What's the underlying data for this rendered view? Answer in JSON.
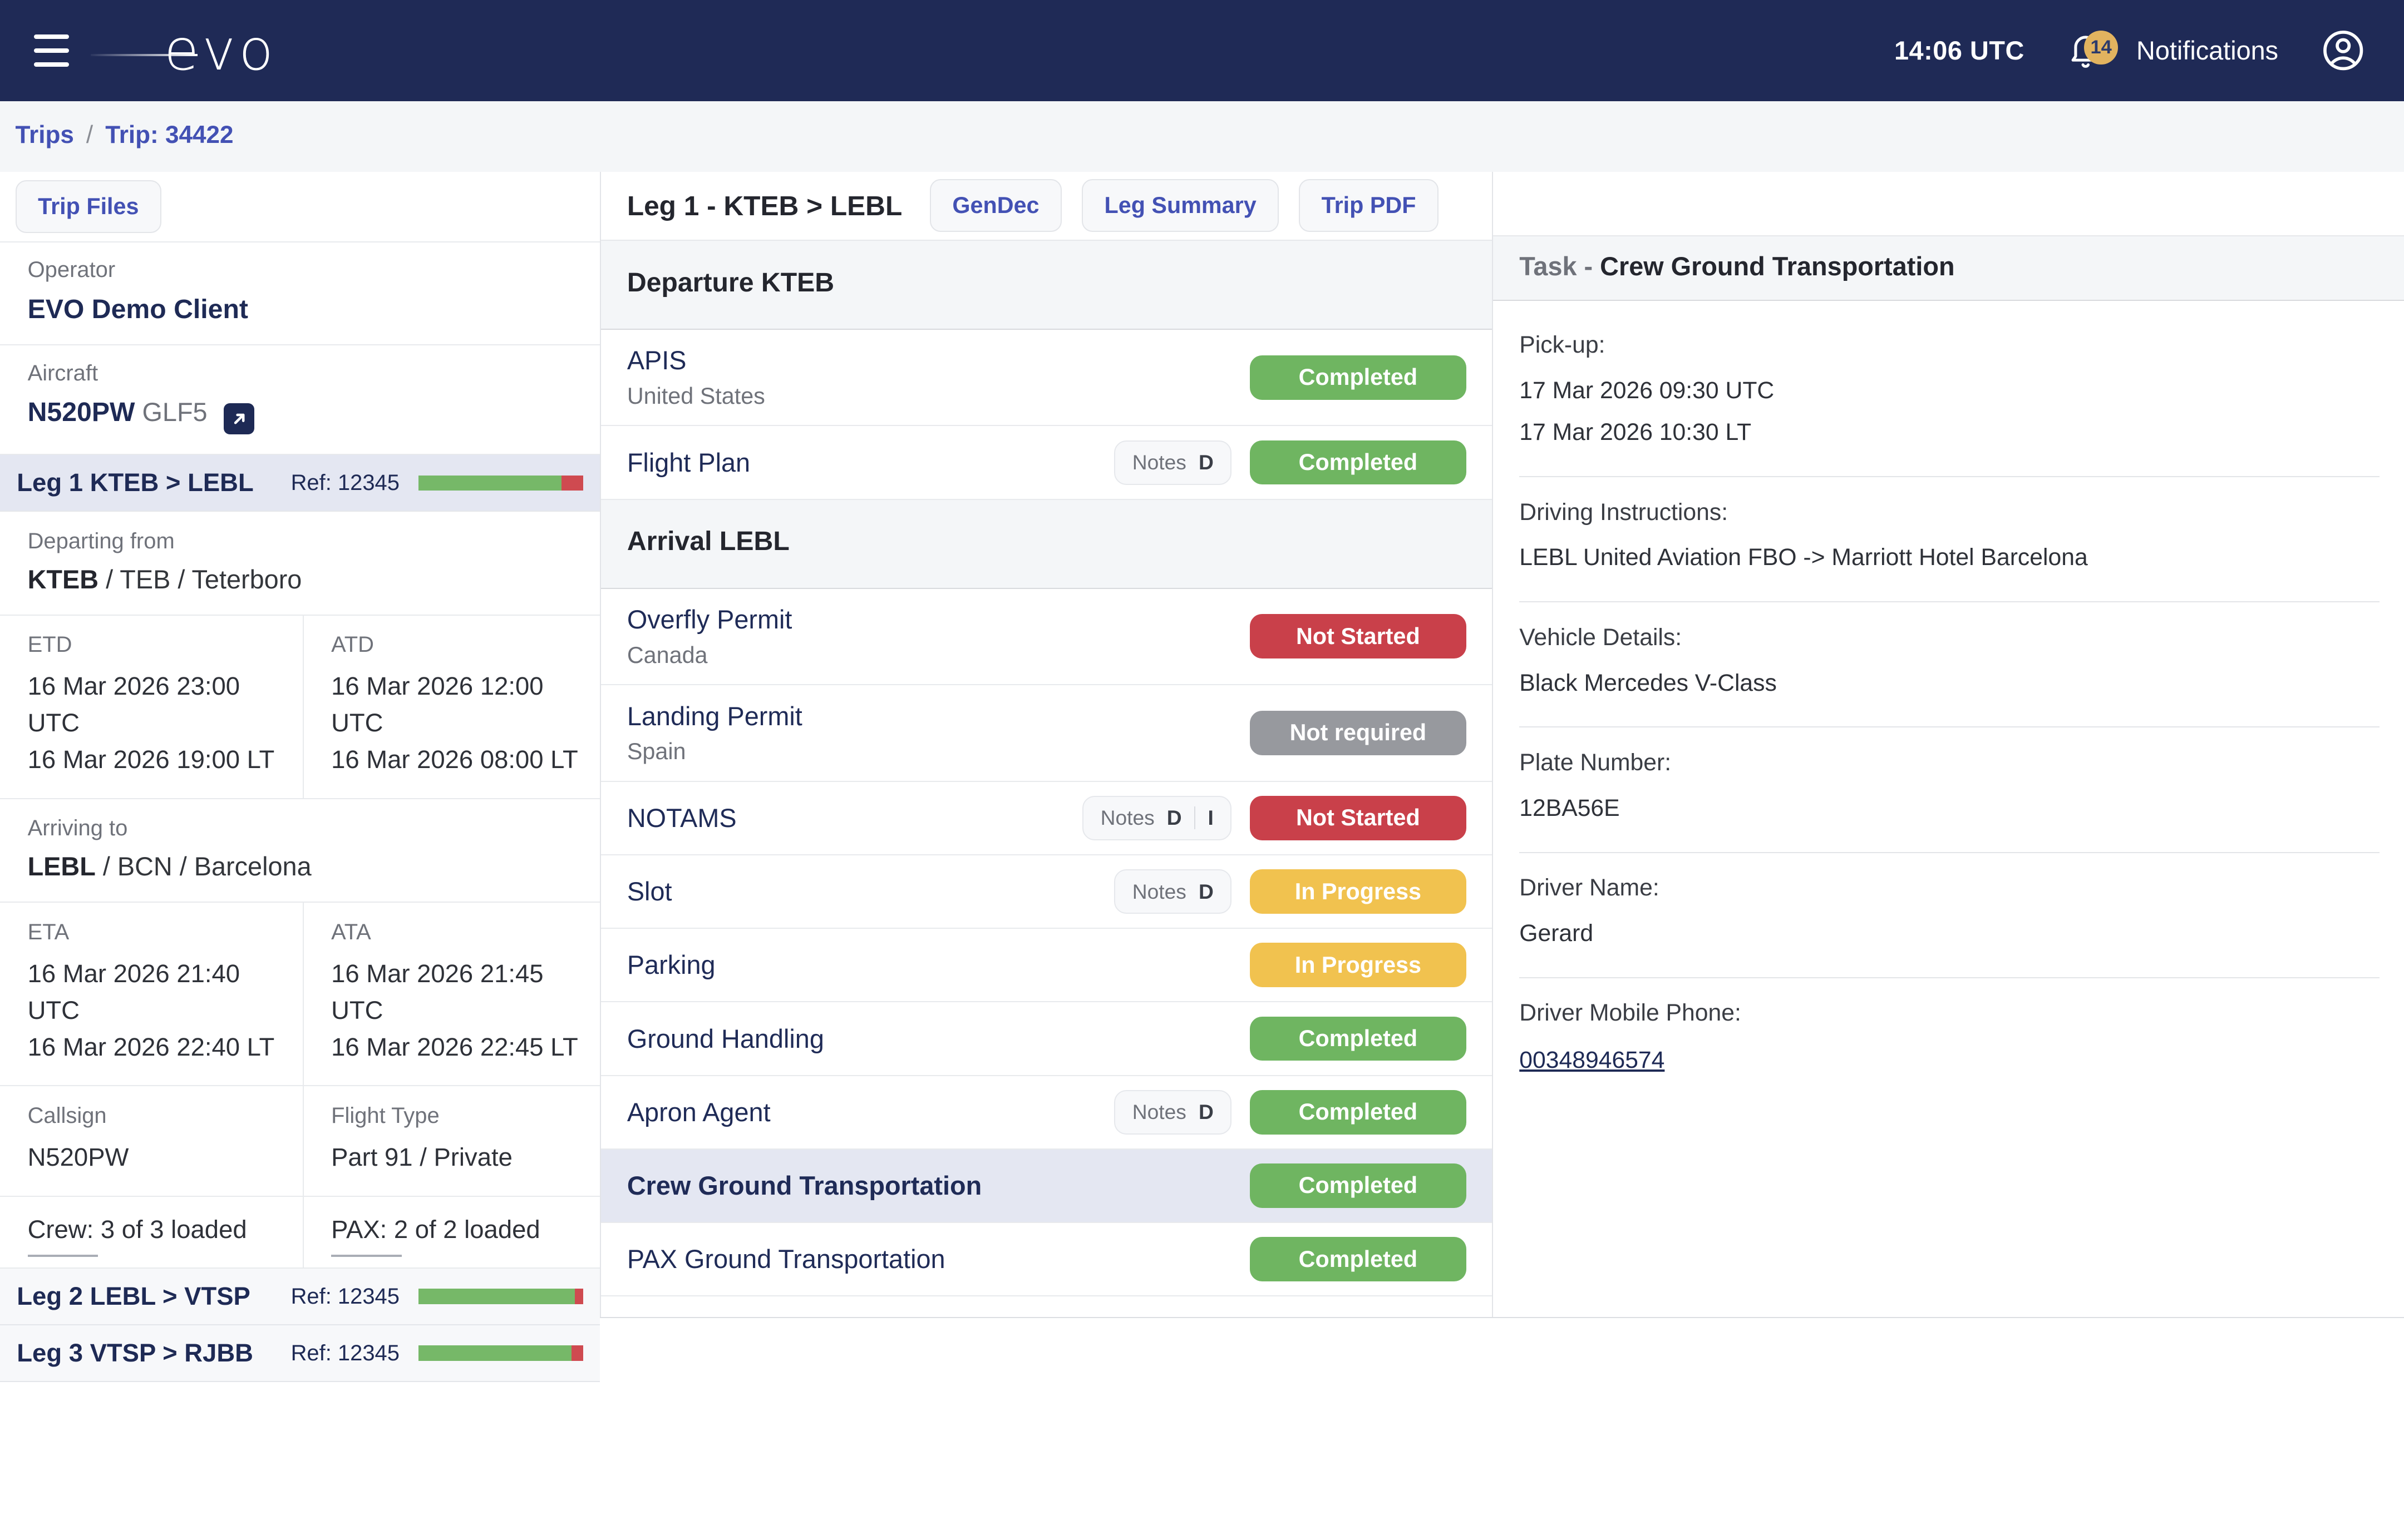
{
  "navbar": {
    "logo": "evo",
    "time": "14:06 UTC",
    "notifications_count": "14",
    "notifications_label": "Notifications"
  },
  "breadcrumb": {
    "trips": "Trips",
    "separator": "/",
    "current": "Trip: 34422"
  },
  "sidebar": {
    "trip_files_button": "Trip Files",
    "operator_label": "Operator",
    "operator_value": "EVO Demo Client",
    "aircraft_label": "Aircraft",
    "aircraft_reg": "N520PW",
    "aircraft_type": "GLF5",
    "legs": [
      {
        "label": "Leg 1 KTEB > LEBL",
        "ref": "Ref: 12345",
        "progress": [
          87,
          13
        ],
        "selected": true
      },
      {
        "label": "Leg 2 LEBL > VTSP",
        "ref": "Ref: 12345",
        "progress": [
          95,
          5
        ],
        "selected": false
      },
      {
        "label": "Leg 3 VTSP > RJBB",
        "ref": "Ref: 12345",
        "progress": [
          93,
          7
        ],
        "selected": false
      }
    ],
    "departing_label": "Departing from",
    "departing_bold": "KTEB",
    "departing_rest": " / TEB / Teterboro",
    "etd_label": "ETD",
    "etd_utc": "16 Mar 2026 23:00 UTC",
    "etd_lt": "16 Mar 2026 19:00 LT",
    "atd_label": "ATD",
    "atd_utc": "16 Mar 2026 12:00 UTC",
    "atd_lt": "16 Mar 2026 08:00 LT",
    "arriving_label": "Arriving to",
    "arriving_bold": "LEBL",
    "arriving_rest": " / BCN / Barcelona",
    "eta_label": "ETA",
    "eta_utc": "16 Mar 2026 21:40 UTC",
    "eta_lt": "16 Mar 2026 22:40 LT",
    "ata_label": "ATA",
    "ata_utc": "16 Mar 2026 21:45 UTC",
    "ata_lt": "16 Mar 2026 22:45 LT",
    "callsign_label": "Callsign",
    "callsign_value": "N520PW",
    "flight_type_label": "Flight Type",
    "flight_type_value": "Part 91 / Private",
    "crew_text": "Crew: 3 of 3 loaded",
    "pax_text": "PAX: 2 of 2 loaded"
  },
  "leg_panel": {
    "title": "Leg 1 - KTEB > LEBL",
    "buttons": [
      "GenDec",
      "Leg Summary",
      "Trip PDF"
    ],
    "sections": [
      {
        "header": "Departure KTEB",
        "tasks": [
          {
            "name": "APIS",
            "subtitle": "United States",
            "status": "Completed",
            "status_key": "completed"
          },
          {
            "name": "Flight Plan",
            "chip": {
              "label": "Notes",
              "flags": [
                "D"
              ]
            },
            "status": "Completed",
            "status_key": "completed"
          }
        ]
      },
      {
        "header": "Arrival LEBL",
        "tasks": [
          {
            "name": "Overfly Permit",
            "subtitle": "Canada",
            "status": "Not Started",
            "status_key": "not_started"
          },
          {
            "name": "Landing Permit",
            "subtitle": "Spain",
            "status": "Not required",
            "status_key": "not_required"
          },
          {
            "name": "NOTAMS",
            "chip": {
              "label": "Notes",
              "flags": [
                "D",
                "I"
              ]
            },
            "status": "Not Started",
            "status_key": "not_started"
          },
          {
            "name": "Slot",
            "chip": {
              "label": "Notes",
              "flags": [
                "D"
              ]
            },
            "status": "In Progress",
            "status_key": "in_progress"
          },
          {
            "name": "Parking",
            "status": "In Progress",
            "status_key": "in_progress"
          },
          {
            "name": "Ground Handling",
            "status": "Completed",
            "status_key": "completed"
          },
          {
            "name": "Apron Agent",
            "chip": {
              "label": "Notes",
              "flags": [
                "D"
              ]
            },
            "status": "Completed",
            "status_key": "completed"
          },
          {
            "name": "Crew Ground Transportation",
            "selected": true,
            "status": "Completed",
            "status_key": "completed"
          },
          {
            "name": "PAX Ground Transportation",
            "status": "Completed",
            "status_key": "completed"
          }
        ]
      }
    ]
  },
  "task_panel": {
    "title_prefix": "Task -",
    "title": "Crew Ground Transportation",
    "details": [
      {
        "label": "Pick-up:",
        "lines": [
          "17 Mar 2026 09:30 UTC",
          "17 Mar 2026 10:30 LT"
        ]
      },
      {
        "label": "Driving Instructions:",
        "lines": [
          "LEBL United Aviation FBO -> Marriott Hotel Barcelona"
        ]
      },
      {
        "label": "Vehicle Details:",
        "lines": [
          "Black Mercedes V-Class"
        ]
      },
      {
        "label": "Plate Number:",
        "lines": [
          "12BA56E"
        ]
      },
      {
        "label": "Driver Name:",
        "lines": [
          "Gerard"
        ]
      },
      {
        "label": "Driver Mobile Phone:",
        "lines": [],
        "link": "00348946574"
      }
    ]
  },
  "colors": {
    "navbar_bg": "#1f2a56",
    "accent_indigo": "#4351b4",
    "navy_text": "#1e2a55",
    "selected_row_bg": "#e4e7f2",
    "badge_gold": "#e2b35f",
    "progress_green": "#76b868",
    "progress_red": "#cf4a50",
    "status": {
      "completed": "#6fb561",
      "not_started": "#c9404a",
      "not_required": "#97999e",
      "in_progress": "#f1c24f"
    }
  }
}
